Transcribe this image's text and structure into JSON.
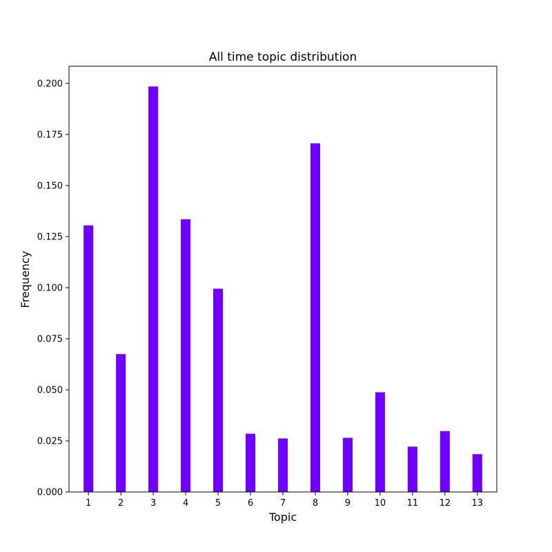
{
  "chart_data": {
    "type": "bar",
    "title": "All time topic distribution",
    "xlabel": "Topic",
    "ylabel": "Frequency",
    "categories": [
      "1",
      "2",
      "3",
      "4",
      "5",
      "6",
      "7",
      "8",
      "9",
      "10",
      "11",
      "12",
      "13"
    ],
    "values": [
      0.1305,
      0.0675,
      0.1985,
      0.1335,
      0.0995,
      0.0285,
      0.0262,
      0.1707,
      0.0265,
      0.0488,
      0.0222,
      0.0298,
      0.0185
    ],
    "ylim": [
      0,
      0.2084
    ],
    "yticks": [
      0.0,
      0.025,
      0.05,
      0.075,
      0.1,
      0.125,
      0.15,
      0.175,
      0.2
    ],
    "ytick_labels": [
      "0.000",
      "0.025",
      "0.050",
      "0.075",
      "0.100",
      "0.125",
      "0.150",
      "0.175",
      "0.200"
    ],
    "bar_color": "#6f00ff",
    "grid": false,
    "legend": false
  }
}
